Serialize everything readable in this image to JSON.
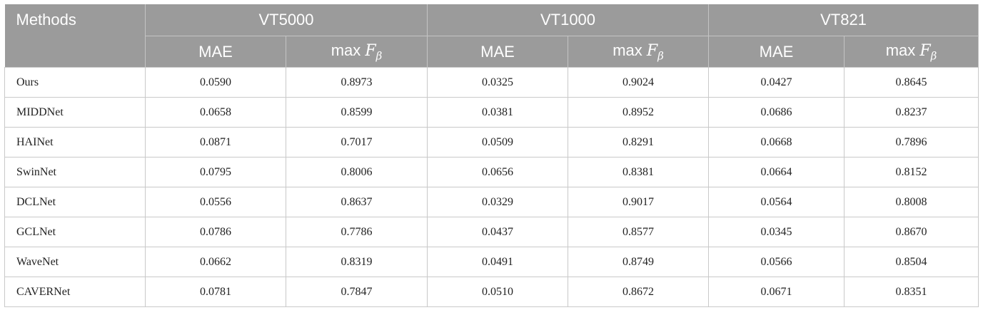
{
  "table": {
    "methods_header": "Methods",
    "groups": [
      "VT5000",
      "VT1000",
      "VT821"
    ],
    "sub_headers": {
      "mae": "MAE",
      "maxf_prefix": "max",
      "maxf_symbol": "F",
      "maxf_subscript": "β"
    },
    "rows": [
      {
        "method": "Ours",
        "values": [
          "0.0590",
          "0.8973",
          "0.0325",
          "0.9024",
          "0.0427",
          "0.8645"
        ]
      },
      {
        "method": "MIDDNet",
        "values": [
          "0.0658",
          "0.8599",
          "0.0381",
          "0.8952",
          "0.0686",
          "0.8237"
        ]
      },
      {
        "method": "HAINet",
        "values": [
          "0.0871",
          "0.7017",
          "0.0509",
          "0.8291",
          "0.0668",
          "0.7896"
        ]
      },
      {
        "method": "SwinNet",
        "values": [
          "0.0795",
          "0.8006",
          "0.0656",
          "0.8381",
          "0.0664",
          "0.8152"
        ]
      },
      {
        "method": "DCLNet",
        "values": [
          "0.0556",
          "0.8637",
          "0.0329",
          "0.9017",
          "0.0564",
          "0.8008"
        ]
      },
      {
        "method": "GCLNet",
        "values": [
          "0.0786",
          "0.7786",
          "0.0437",
          "0.8577",
          "0.0345",
          "0.8670"
        ]
      },
      {
        "method": "WaveNet",
        "values": [
          "0.0662",
          "0.8319",
          "0.0491",
          "0.8749",
          "0.0566",
          "0.8504"
        ]
      },
      {
        "method": "CAVERNet",
        "values": [
          "0.0781",
          "0.7847",
          "0.0510",
          "0.8672",
          "0.0671",
          "0.8351"
        ]
      }
    ]
  }
}
